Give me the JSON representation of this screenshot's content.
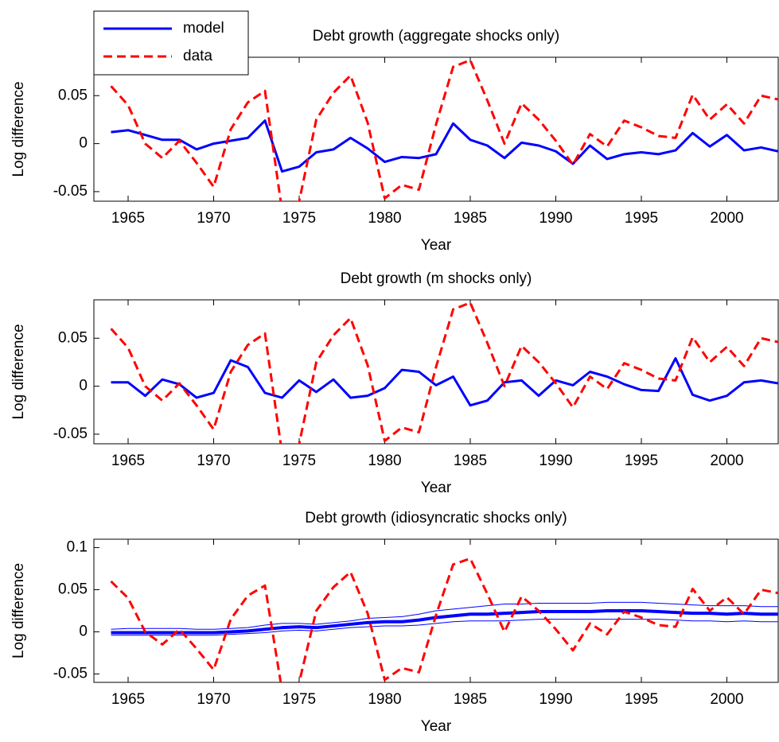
{
  "chart_data": [
    {
      "type": "line",
      "title": "Debt growth (aggregate shocks only)",
      "xlabel": "Year",
      "ylabel": "Log difference",
      "legend": "northwest",
      "x": [
        1964,
        1965,
        1966,
        1967,
        1968,
        1969,
        1970,
        1971,
        1972,
        1973,
        1974,
        1975,
        1976,
        1977,
        1978,
        1979,
        1980,
        1981,
        1982,
        1983,
        1984,
        1985,
        1986,
        1987,
        1988,
        1989,
        1990,
        1991,
        1992,
        1993,
        1994,
        1995,
        1996,
        1997,
        1998,
        1999,
        2000,
        2001,
        2002,
        2003
      ],
      "series": [
        {
          "name": "model",
          "color": "#0000ff",
          "linestyle": "-",
          "linewidth": 3,
          "values": [
            0.012,
            0.014,
            0.009,
            0.004,
            0.004,
            -0.006,
            0,
            0.003,
            0.006,
            0.024,
            -0.029,
            -0.024,
            -0.009,
            -0.006,
            0.006,
            -0.005,
            -0.019,
            -0.014,
            -0.015,
            -0.011,
            0.021,
            0.004,
            -0.002,
            -0.015,
            0.001,
            -0.002,
            -0.008,
            -0.021,
            -0.002,
            -0.016,
            -0.011,
            -0.009,
            -0.011,
            -0.007,
            0.011,
            -0.003,
            0.009,
            -0.007,
            -0.004,
            -0.008
          ]
        },
        {
          "name": "data",
          "color": "#ff0000",
          "linestyle": "--",
          "linewidth": 3,
          "values": [
            0.06,
            0.04,
            0,
            -0.015,
            0.003,
            -0.02,
            -0.045,
            0.015,
            0.043,
            0.055,
            -0.07,
            -0.06,
            0.025,
            0.053,
            0.071,
            0.022,
            -0.057,
            -0.043,
            -0.048,
            0.02,
            0.08,
            0.087,
            0.045,
            0,
            0.042,
            0.025,
            0.003,
            -0.022,
            0.01,
            -0.003,
            0.024,
            0.017,
            0.008,
            0.006,
            0.051,
            0.025,
            0.041,
            0.021,
            0.05,
            0.046
          ]
        }
      ],
      "xlim": [
        1963,
        2003
      ],
      "ylim": [
        -0.06,
        0.09
      ],
      "xticks": [
        1965,
        1970,
        1975,
        1980,
        1985,
        1990,
        1995,
        2000
      ],
      "yticks": [
        -0.05,
        0,
        0.05
      ]
    },
    {
      "type": "line",
      "title": "Debt growth (m shocks only)",
      "xlabel": "Year",
      "ylabel": "Log difference",
      "x": [
        1964,
        1965,
        1966,
        1967,
        1968,
        1969,
        1970,
        1971,
        1972,
        1973,
        1974,
        1975,
        1976,
        1977,
        1978,
        1979,
        1980,
        1981,
        1982,
        1983,
        1984,
        1985,
        1986,
        1987,
        1988,
        1989,
        1990,
        1991,
        1992,
        1993,
        1994,
        1995,
        1996,
        1997,
        1998,
        1999,
        2000,
        2001,
        2002,
        2003
      ],
      "series": [
        {
          "color": "#0000ff",
          "linestyle": "-",
          "linewidth": 3,
          "values": [
            0.004,
            0.004,
            -0.01,
            0.007,
            0.002,
            -0.012,
            -0.007,
            0.027,
            0.02,
            -0.007,
            -0.012,
            0.006,
            -0.006,
            0.007,
            -0.012,
            -0.01,
            -0.002,
            0.017,
            0.015,
            0.001,
            0.01,
            -0.02,
            -0.015,
            0.004,
            0.006,
            -0.01,
            0.006,
            0.001,
            0.015,
            0.01,
            0.002,
            -0.004,
            -0.005,
            0.029,
            -0.009,
            -0.015,
            -0.01,
            0.004,
            0.006,
            0.003
          ]
        },
        {
          "color": "#ff0000",
          "linestyle": "--",
          "linewidth": 3,
          "values": [
            0.06,
            0.04,
            0,
            -0.015,
            0.003,
            -0.02,
            -0.045,
            0.015,
            0.043,
            0.055,
            -0.07,
            -0.06,
            0.025,
            0.053,
            0.071,
            0.022,
            -0.057,
            -0.043,
            -0.048,
            0.02,
            0.08,
            0.087,
            0.045,
            0,
            0.042,
            0.025,
            0.003,
            -0.022,
            0.01,
            -0.003,
            0.024,
            0.017,
            0.008,
            0.006,
            0.051,
            0.025,
            0.041,
            0.021,
            0.05,
            0.046
          ]
        }
      ],
      "xlim": [
        1963,
        2003
      ],
      "ylim": [
        -0.06,
        0.09
      ],
      "xticks": [
        1965,
        1970,
        1975,
        1980,
        1985,
        1990,
        1995,
        2000
      ],
      "yticks": [
        -0.05,
        0,
        0.05
      ]
    },
    {
      "type": "line",
      "title": "Debt growth (idiosyncratic shocks only)",
      "xlabel": "Year",
      "ylabel": "Log difference",
      "x": [
        1964,
        1965,
        1966,
        1967,
        1968,
        1969,
        1970,
        1971,
        1972,
        1973,
        1974,
        1975,
        1976,
        1977,
        1978,
        1979,
        1980,
        1981,
        1982,
        1983,
        1984,
        1985,
        1986,
        1987,
        1988,
        1989,
        1990,
        1991,
        1992,
        1993,
        1994,
        1995,
        1996,
        1997,
        1998,
        1999,
        2000,
        2001,
        2002,
        2003
      ],
      "series": [
        {
          "color": "#0000ff",
          "linestyle": "-",
          "linewidth": 1,
          "values": [
            0.003,
            0.004,
            0.004,
            0.004,
            0.004,
            0.003,
            0.003,
            0.004,
            0.005,
            0.008,
            0.01,
            0.01,
            0.009,
            0.011,
            0.013,
            0.016,
            0.017,
            0.018,
            0.021,
            0.025,
            0.027,
            0.029,
            0.031,
            0.033,
            0.033,
            0.034,
            0.034,
            0.034,
            0.034,
            0.035,
            0.035,
            0.035,
            0.034,
            0.033,
            0.032,
            0.031,
            0.031,
            0.031,
            0.03,
            0.03
          ]
        },
        {
          "color": "#0000ff",
          "linestyle": "-",
          "linewidth": 4,
          "values": [
            -0.001,
            -0.001,
            -0.001,
            -0.001,
            -0.001,
            -0.001,
            -0.001,
            0,
            0.001,
            0.003,
            0.005,
            0.006,
            0.005,
            0.007,
            0.009,
            0.011,
            0.012,
            0.012,
            0.014,
            0.017,
            0.019,
            0.021,
            0.021,
            0.022,
            0.023,
            0.024,
            0.024,
            0.024,
            0.024,
            0.025,
            0.025,
            0.025,
            0.024,
            0.023,
            0.022,
            0.022,
            0.021,
            0.022,
            0.021,
            0.021
          ]
        },
        {
          "color": "#0000ff",
          "linestyle": "-",
          "linewidth": 1,
          "values": [
            -0.004,
            -0.004,
            -0.004,
            -0.004,
            -0.004,
            -0.004,
            -0.004,
            -0.003,
            -0.002,
            -0.001,
            0.001,
            0.002,
            0.001,
            0.003,
            0.005,
            0.006,
            0.007,
            0.007,
            0.008,
            0.01,
            0.012,
            0.013,
            0.013,
            0.013,
            0.014,
            0.015,
            0.015,
            0.015,
            0.015,
            0.015,
            0.015,
            0.015,
            0.015,
            0.014,
            0.013,
            0.013,
            0.012,
            0.013,
            0.012,
            0.012
          ]
        },
        {
          "color": "#ff0000",
          "linestyle": "--",
          "linewidth": 3,
          "values": [
            0.06,
            0.04,
            0,
            -0.015,
            0.003,
            -0.02,
            -0.045,
            0.015,
            0.043,
            0.055,
            -0.07,
            -0.06,
            0.025,
            0.053,
            0.071,
            0.022,
            -0.057,
            -0.043,
            -0.048,
            0.02,
            0.08,
            0.087,
            0.045,
            0,
            0.042,
            0.025,
            0.003,
            -0.022,
            0.01,
            -0.003,
            0.024,
            0.017,
            0.008,
            0.006,
            0.051,
            0.025,
            0.041,
            0.021,
            0.05,
            0.046
          ]
        }
      ],
      "xlim": [
        1963,
        2003
      ],
      "ylim": [
        -0.06,
        0.11
      ],
      "xticks": [
        1965,
        1970,
        1975,
        1980,
        1985,
        1990,
        1995,
        2000
      ],
      "yticks": [
        -0.05,
        0,
        0.05,
        0.1
      ]
    }
  ]
}
